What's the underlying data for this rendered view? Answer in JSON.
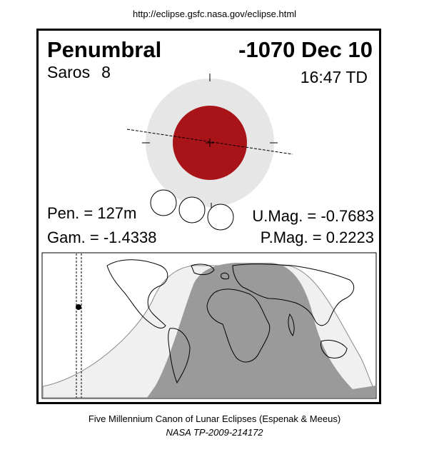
{
  "header": {
    "url": "http://eclipse.gsfc.nasa.gov/eclipse.html"
  },
  "eclipse": {
    "type": "Penumbral",
    "date": "-1070 Dec 10",
    "saros_label": "Saros",
    "saros_number": "8",
    "time": "16:47 TD",
    "pen_duration": "Pen. = 127m",
    "gamma": "Gam. = -1.4338",
    "umbral_magnitude": "U.Mag. = -0.7683",
    "penumbral_magnitude": "P.Mag. = 0.2223"
  },
  "colors": {
    "umbra": "#a81417",
    "penumbra": "#e6e6e6",
    "night_zone": "#9a9a9a",
    "partial_zone": "#f0f0f0"
  },
  "footer": {
    "line1": "Five Millennium Canon of Lunar Eclipses (Espenak & Meeus)",
    "line2": "NASA TP-2009-214172"
  }
}
